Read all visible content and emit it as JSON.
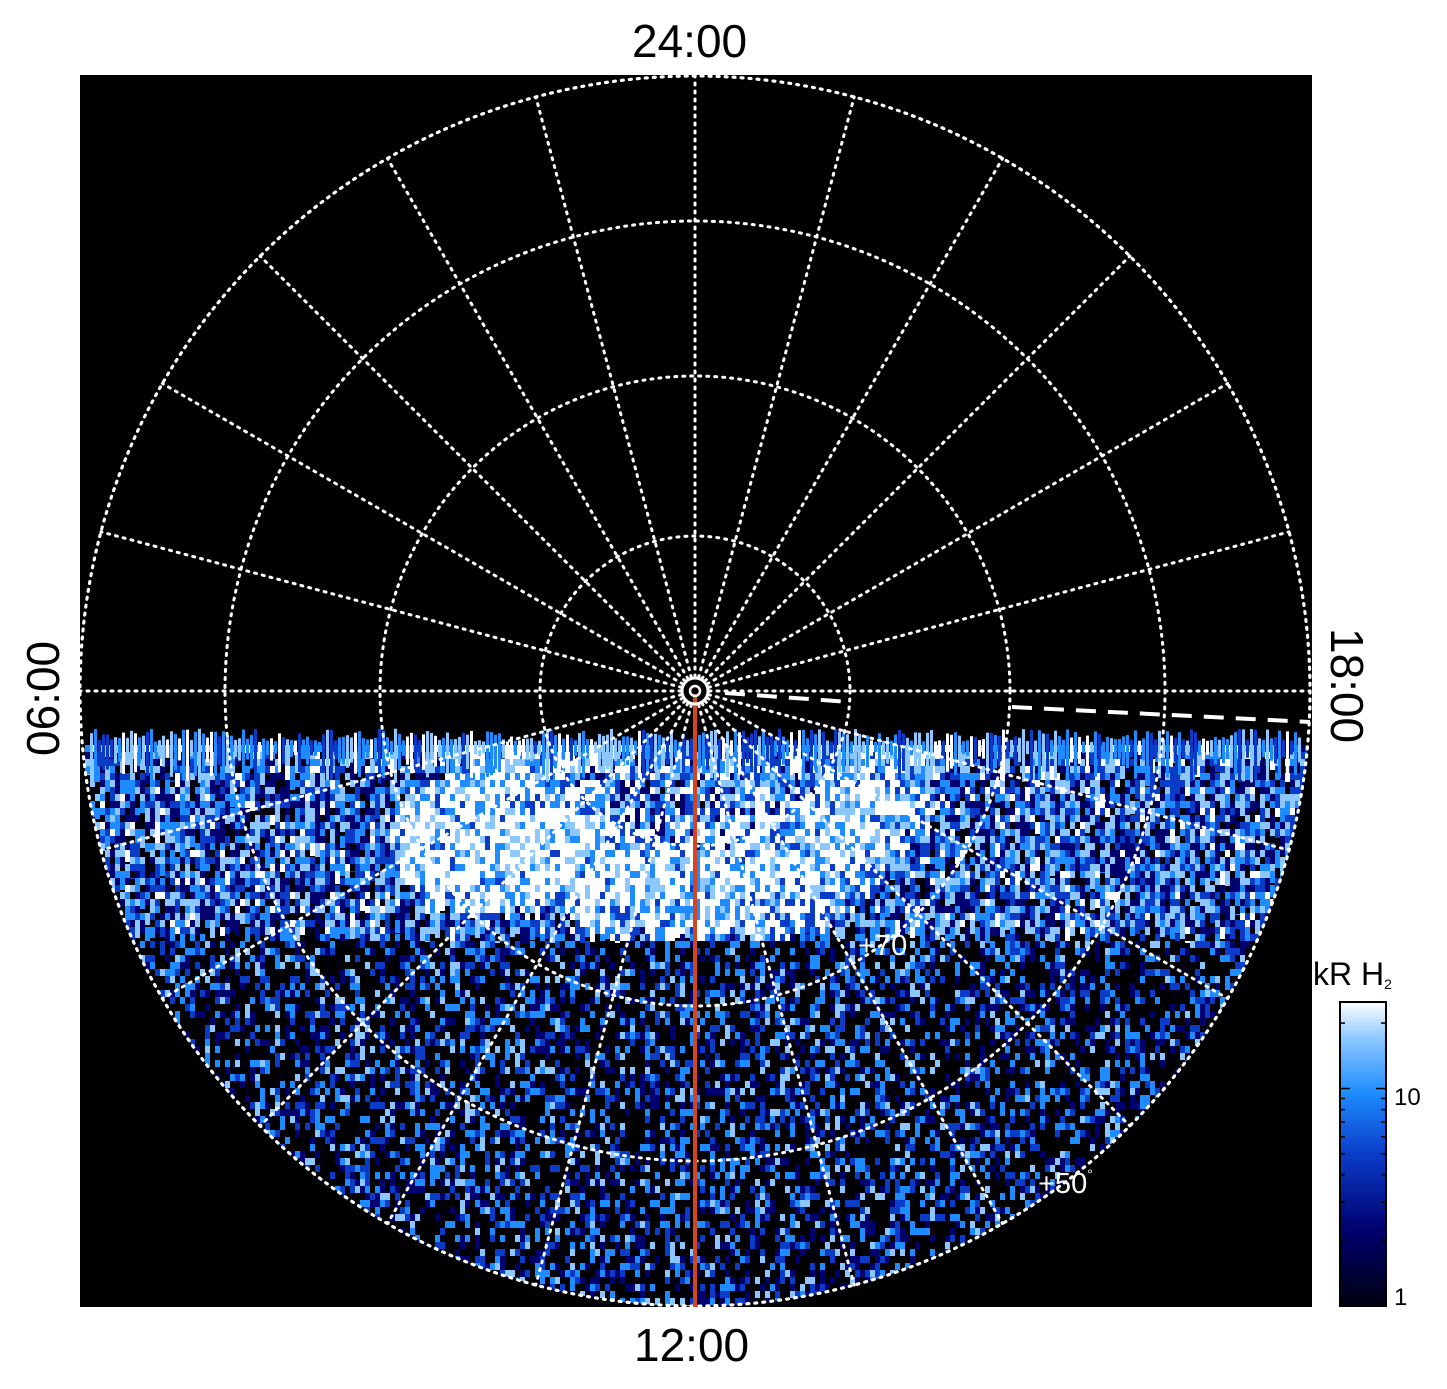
{
  "plot": {
    "local_time_labels": {
      "top": "24:00",
      "bottom": "12:00",
      "left": "06:00",
      "right": "18:00"
    },
    "latitude_labels": {
      "inner": "+70",
      "outer": "+50",
      "degree_symbol": "°"
    },
    "colors": {
      "background": "#000000",
      "grid": "#ffffff",
      "reference_line": "#d2451e",
      "colormap": [
        "#000010",
        "#00006e",
        "#0a3cc8",
        "#1e8cff",
        "#8cc8ff",
        "#ffffff"
      ]
    },
    "terminator_style": "dashed",
    "colorbar": {
      "title": "kR H",
      "title_subscript": "2",
      "scale": "log",
      "range": [
        1,
        25
      ],
      "tick_labels": [
        "10",
        "1"
      ]
    }
  }
}
